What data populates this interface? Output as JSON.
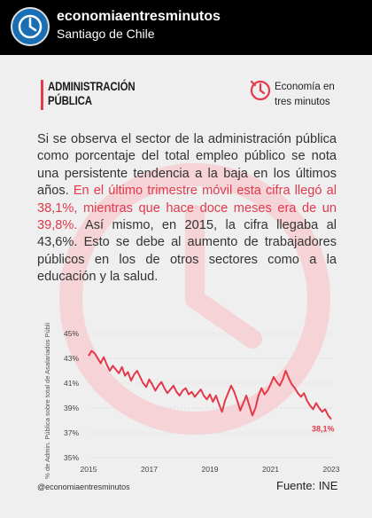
{
  "header": {
    "account_name": "economiaentresminutos",
    "location": "Santiago de Chile"
  },
  "card": {
    "section_title": "ADMINISTRACIÓN PÚBLICA",
    "brand_name": "Economía en tres minutos",
    "paragraph": {
      "part1": "Si se observa el sector de la administración pública como porcentaje del total empleo público se nota una persistente tendencia a la baja en los últimos años. ",
      "highlight": "En el último trimestre móvil esta cifra llegó al 38,1%, mientras que hace doce meses era de un 39,8%.",
      "part2": " Así mismo, en 2015, la cifra llegaba al 43,6%. Esto se debe al aumento de trabajadores públicos en los de otros sectores como a la educación y la salud."
    },
    "footer": {
      "handle": "@economiaentresminutos",
      "source": "Fuente: INE"
    }
  },
  "colors": {
    "accent": "#e3394b",
    "text": "#333333",
    "card_bg": "#efefef"
  },
  "chart_data": {
    "type": "line",
    "title": "",
    "ylabel": "% de Admin. Pública sobre total de Asalariados Públicos",
    "xlabel": "",
    "ylim": [
      35,
      45
    ],
    "xlim": [
      2015,
      2023
    ],
    "y_ticks": [
      "35%",
      "37%",
      "39%",
      "41%",
      "43%",
      "45%"
    ],
    "x_ticks": [
      "2015",
      "2017",
      "2019",
      "2021",
      "2023"
    ],
    "end_label": "38,1%",
    "grid": true,
    "series": [
      {
        "color": "#e3394b",
        "x": [
          2015.0,
          2015.1,
          2015.2,
          2015.3,
          2015.4,
          2015.5,
          2015.6,
          2015.7,
          2015.8,
          2015.9,
          2016.0,
          2016.1,
          2016.2,
          2016.3,
          2016.4,
          2016.5,
          2016.6,
          2016.7,
          2016.8,
          2016.9,
          2017.0,
          2017.1,
          2017.2,
          2017.3,
          2017.4,
          2017.5,
          2017.6,
          2017.7,
          2017.8,
          2017.9,
          2018.0,
          2018.1,
          2018.2,
          2018.3,
          2018.4,
          2018.5,
          2018.6,
          2018.7,
          2018.8,
          2018.9,
          2019.0,
          2019.1,
          2019.2,
          2019.3,
          2019.4,
          2019.5,
          2019.6,
          2019.7,
          2019.8,
          2019.9,
          2020.0,
          2020.1,
          2020.2,
          2020.3,
          2020.4,
          2020.5,
          2020.6,
          2020.7,
          2020.8,
          2020.9,
          2021.0,
          2021.1,
          2021.2,
          2021.3,
          2021.4,
          2021.5,
          2021.6,
          2021.7,
          2021.8,
          2021.9,
          2022.0,
          2022.1,
          2022.2,
          2022.3,
          2022.4,
          2022.5,
          2022.6,
          2022.7,
          2022.8,
          2022.9,
          2023.0
        ],
        "values": [
          43.2,
          43.6,
          43.4,
          43.0,
          42.6,
          43.1,
          42.5,
          42.0,
          42.4,
          42.1,
          41.8,
          42.3,
          41.6,
          41.9,
          41.2,
          41.7,
          42.0,
          41.5,
          41.0,
          40.7,
          41.3,
          40.9,
          40.4,
          40.8,
          41.1,
          40.6,
          40.2,
          40.5,
          40.8,
          40.3,
          40.0,
          40.4,
          40.6,
          40.1,
          40.3,
          39.9,
          40.2,
          40.5,
          40.0,
          39.7,
          40.1,
          39.5,
          40.0,
          39.3,
          38.7,
          39.6,
          40.2,
          40.8,
          40.3,
          39.6,
          38.8,
          39.4,
          40.0,
          39.2,
          38.4,
          39.0,
          40.0,
          40.6,
          40.1,
          40.4,
          40.9,
          41.5,
          41.1,
          40.8,
          41.3,
          42.0,
          41.4,
          40.9,
          40.6,
          40.2,
          39.9,
          40.2,
          39.6,
          39.2,
          38.9,
          39.4,
          39.0,
          38.7,
          38.9,
          38.4,
          38.1
        ]
      }
    ]
  }
}
